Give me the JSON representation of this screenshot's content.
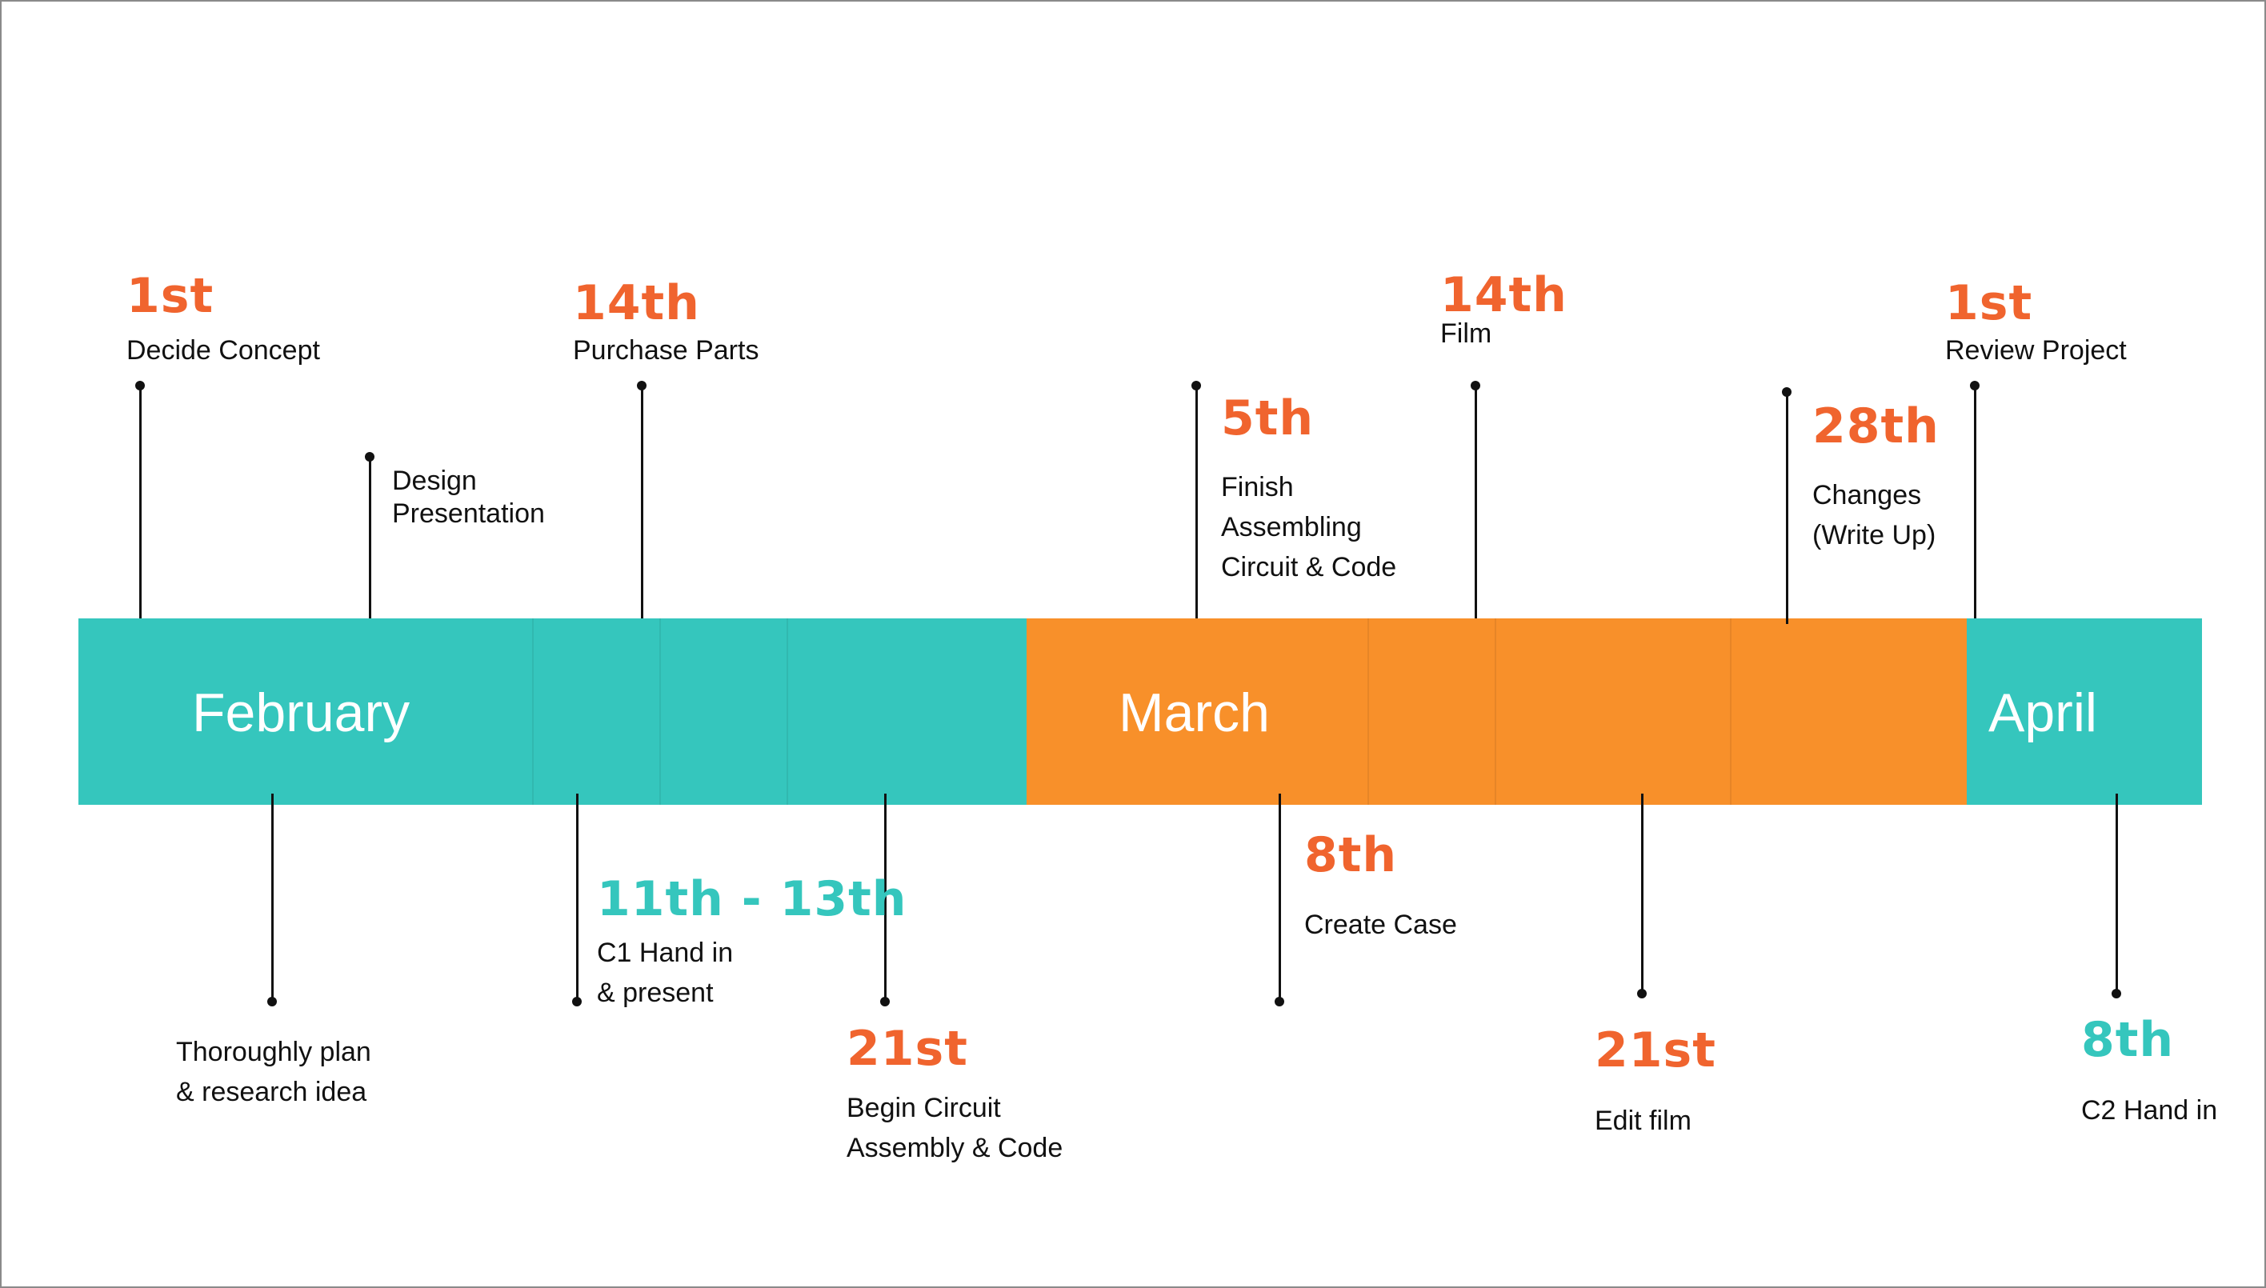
{
  "colors": {
    "teal": "#35c6bd",
    "orange": "#f8902a",
    "date_orange": "#f0642e",
    "date_teal": "#35c6bd"
  },
  "months": [
    {
      "name": "February",
      "color": "#35c6bd"
    },
    {
      "name": "March",
      "color": "#f8902a"
    },
    {
      "name": "April",
      "color": "#35c6bd"
    }
  ],
  "events": [
    {
      "id": "feb-1st",
      "date": "1st",
      "lines": [
        "Decide Concept"
      ],
      "color": "#f0642e"
    },
    {
      "id": "feb-design",
      "date": "",
      "lines": [
        "Design",
        "Presentation"
      ],
      "color": "#f0642e"
    },
    {
      "id": "feb-14th",
      "date": "14th",
      "lines": [
        "Purchase Parts"
      ],
      "color": "#f0642e"
    },
    {
      "id": "mar-5th",
      "date": "5th",
      "lines": [
        "Finish",
        "Assembling",
        "Circuit & Code"
      ],
      "color": "#f0642e"
    },
    {
      "id": "mar-14th",
      "date": "14th",
      "lines": [
        "Film"
      ],
      "color": "#f0642e"
    },
    {
      "id": "mar-28th",
      "date": "28th",
      "lines": [
        "Changes",
        "(Write Up)"
      ],
      "color": "#f0642e"
    },
    {
      "id": "apr-1st",
      "date": "1st",
      "lines": [
        "Review Project"
      ],
      "color": "#f0642e"
    },
    {
      "id": "feb-plan",
      "date": "",
      "lines": [
        "Thoroughly plan",
        "& research idea"
      ],
      "color": "#f0642e"
    },
    {
      "id": "feb-11th-13th",
      "date": "11th - 13th",
      "lines": [
        "C1 Hand in",
        "& present"
      ],
      "color": "#35c6bd"
    },
    {
      "id": "feb-21st",
      "date": "21st",
      "lines": [
        "Begin Circuit",
        "Assembly & Code"
      ],
      "color": "#f0642e"
    },
    {
      "id": "mar-8th",
      "date": "8th",
      "lines": [
        "Create Case"
      ],
      "color": "#f0642e"
    },
    {
      "id": "mar-21st",
      "date": "21st",
      "lines": [
        "Edit film"
      ],
      "color": "#f0642e"
    },
    {
      "id": "apr-8th",
      "date": "8th",
      "lines": [
        "C2 Hand in"
      ],
      "color": "#35c6bd"
    }
  ]
}
